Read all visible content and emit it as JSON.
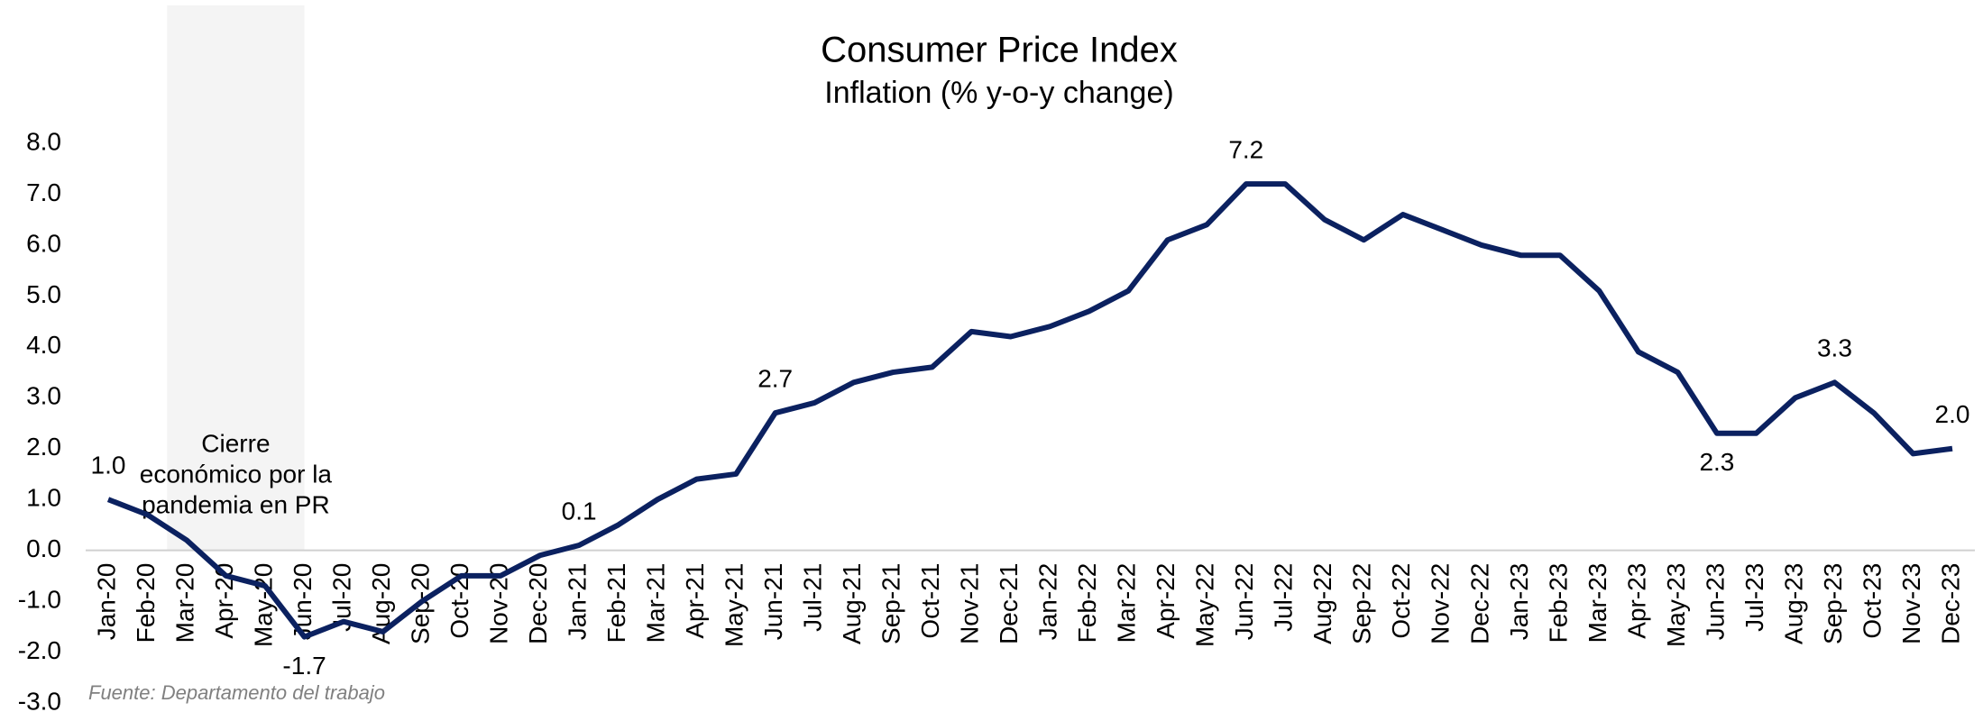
{
  "chart_data": {
    "type": "line",
    "title": "Consumer Price Index",
    "subtitle": "Inflation (% y-o-y change)",
    "source": "Fuente: Departamento del trabajo",
    "annotation": {
      "lines": [
        "Cierre",
        "económico por la",
        "pandemia en PR"
      ]
    },
    "shaded_region": {
      "from": "Mar-20",
      "to": "Jun-20",
      "color": "#f4f4f4"
    },
    "categories": [
      "Jan-20",
      "Feb-20",
      "Mar-20",
      "Apr-20",
      "May-20",
      "Jun-20",
      "Jul-20",
      "Aug-20",
      "Sep-20",
      "Oct-20",
      "Nov-20",
      "Dec-20",
      "Jan-21",
      "Feb-21",
      "Mar-21",
      "Apr-21",
      "May-21",
      "Jun-21",
      "Jul-21",
      "Aug-21",
      "Sep-21",
      "Oct-21",
      "Nov-21",
      "Dec-21",
      "Jan-22",
      "Feb-22",
      "Mar-22",
      "Apr-22",
      "May-22",
      "Jun-22",
      "Jul-22",
      "Aug-22",
      "Sep-22",
      "Oct-22",
      "Nov-22",
      "Dec-22",
      "Jan-23",
      "Feb-23",
      "Mar-23",
      "Apr-23",
      "May-23",
      "Jun-23",
      "Jul-23",
      "Aug-23",
      "Sep-23",
      "Oct-23",
      "Nov-23",
      "Dec-23"
    ],
    "series": [
      {
        "name": "Inflation",
        "color": "#0b2160",
        "values": [
          1.0,
          0.7,
          0.2,
          -0.5,
          -0.7,
          -1.7,
          -1.4,
          -1.6,
          -1.0,
          -0.5,
          -0.5,
          -0.1,
          0.1,
          0.5,
          1.0,
          1.4,
          1.5,
          2.7,
          2.9,
          3.3,
          3.5,
          3.6,
          4.3,
          4.2,
          4.4,
          4.7,
          5.1,
          6.1,
          6.4,
          7.2,
          7.2,
          6.5,
          6.1,
          6.6,
          6.3,
          6.0,
          5.8,
          5.8,
          5.1,
          3.9,
          3.5,
          2.3,
          2.3,
          3.0,
          3.3,
          2.7,
          1.9,
          2.0
        ],
        "value_labels": [
          "1.0",
          null,
          null,
          null,
          null,
          "-1.7",
          null,
          null,
          null,
          null,
          null,
          null,
          "0.1",
          null,
          null,
          null,
          null,
          "2.7",
          null,
          null,
          null,
          null,
          null,
          null,
          null,
          null,
          null,
          null,
          null,
          "7.2",
          null,
          null,
          null,
          null,
          null,
          null,
          null,
          null,
          null,
          null,
          null,
          "2.3",
          null,
          null,
          "3.3",
          null,
          null,
          "2.0"
        ]
      }
    ],
    "ylim": [
      -3,
      8
    ],
    "yticks": [
      {
        "value": -3,
        "label": "-3.0"
      },
      {
        "value": -2,
        "label": "-2.0"
      },
      {
        "value": -1,
        "label": "-1.0"
      },
      {
        "value": 0,
        "label": "0.0"
      },
      {
        "value": 1,
        "label": "1.0"
      },
      {
        "value": 2,
        "label": "2.0"
      },
      {
        "value": 3,
        "label": "3.0"
      },
      {
        "value": 4,
        "label": "4.0"
      },
      {
        "value": 5,
        "label": "5.0"
      },
      {
        "value": 6,
        "label": "6.0"
      },
      {
        "value": 7,
        "label": "7.0"
      },
      {
        "value": 8,
        "label": "8.0"
      }
    ],
    "grid": false
  }
}
